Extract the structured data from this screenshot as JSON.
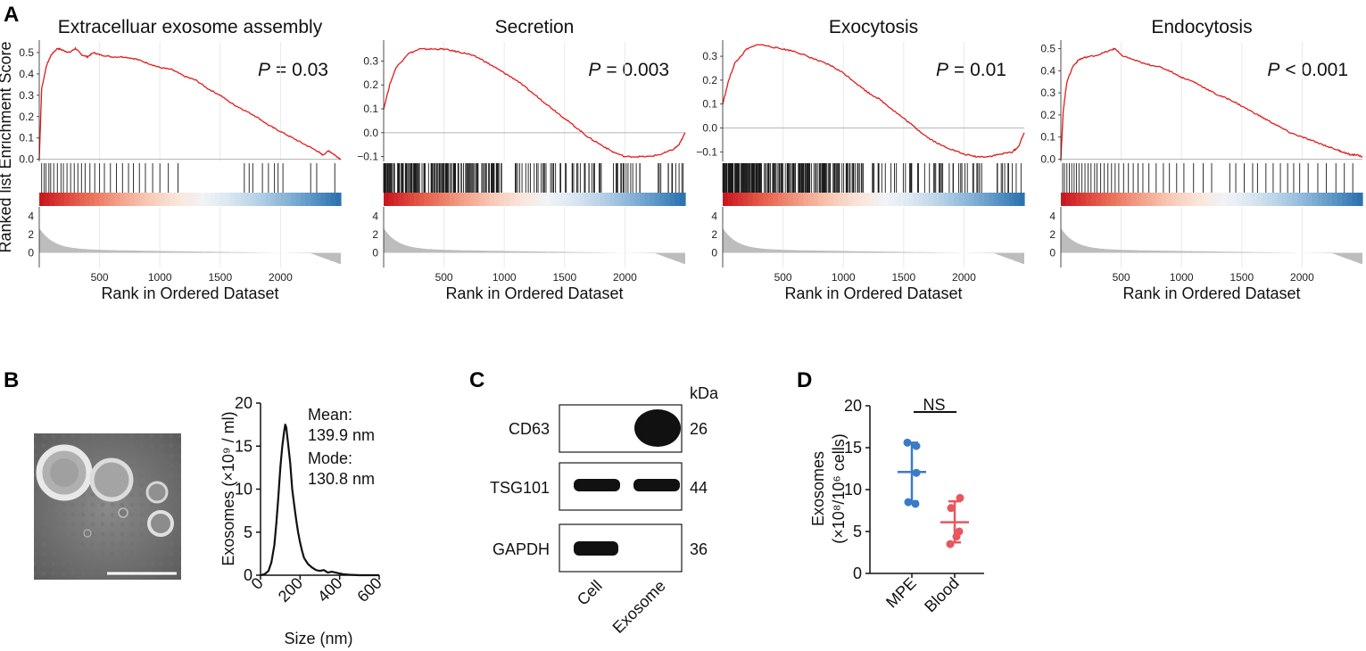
{
  "panel_labels": {
    "a": "A",
    "b": "B",
    "c": "C",
    "d": "D"
  },
  "colors": {
    "es_line": "#e31a1c",
    "hit": "#1a1a1a",
    "ranked_fill": "#bdbdbd",
    "heat_pos": "#c9181f",
    "heat_neg": "#1f66a8",
    "mpe": "#3a7bc8",
    "blood": "#e8575e",
    "black": "#111111"
  },
  "chart_data": [
    {
      "type": "line",
      "id": "gsea-1",
      "title": "Extracelluar exosome assembly",
      "p_label": "P",
      "p_text": "= 0.03",
      "xlabel": "Rank in Ordered Dataset",
      "ylabel": "Ranked list Enrichment Score",
      "xlim": [
        0,
        2500
      ],
      "ylim": [
        -0.01,
        0.55
      ],
      "yticks": [
        "0.0",
        "0.1",
        "0.2",
        "0.3",
        "0.4",
        "0.5"
      ],
      "ytick_values": [
        0,
        0.1,
        0.2,
        0.3,
        0.4,
        0.5
      ],
      "xticks": [
        "500",
        "1000",
        "1500",
        "2000"
      ],
      "xtick_values": [
        500,
        1000,
        1500,
        2000
      ],
      "ranked_yticks": [
        "0",
        "2",
        "4"
      ],
      "ranked_ytick_values": [
        0,
        2,
        4
      ],
      "es_curve": {
        "x": [
          0,
          20,
          60,
          100,
          150,
          200,
          250,
          300,
          350,
          400,
          450,
          500,
          600,
          700,
          800,
          900,
          1000,
          1100,
          1200,
          1300,
          1400,
          1500,
          1600,
          1700,
          1800,
          1900,
          2000,
          2100,
          2200,
          2300,
          2350,
          2400,
          2450,
          2500
        ],
        "y": [
          0.0,
          0.33,
          0.44,
          0.49,
          0.52,
          0.51,
          0.5,
          0.52,
          0.49,
          0.48,
          0.5,
          0.49,
          0.48,
          0.48,
          0.47,
          0.45,
          0.43,
          0.42,
          0.39,
          0.37,
          0.33,
          0.3,
          0.26,
          0.23,
          0.2,
          0.16,
          0.13,
          0.1,
          0.07,
          0.04,
          0.02,
          0.04,
          0.02,
          0.0
        ]
      },
      "hit_positions": [
        20,
        40,
        55,
        80,
        95,
        120,
        150,
        180,
        200,
        230,
        260,
        290,
        320,
        350,
        380,
        420,
        460,
        500,
        540,
        590,
        640,
        690,
        740,
        780,
        830,
        880,
        940,
        1000,
        1070,
        1150,
        1700,
        1740,
        1770,
        1850,
        1900,
        1950,
        1980,
        2020,
        2250,
        2300,
        2450
      ]
    },
    {
      "type": "line",
      "id": "gsea-2",
      "title": "Secretion",
      "p_label": "P",
      "p_text": "= 0.003",
      "xlabel": "Rank in Ordered Dataset",
      "ylabel": "",
      "xlim": [
        0,
        2500
      ],
      "ylim": [
        -0.12,
        0.38
      ],
      "yticks": [
        "−0.1",
        "0.0",
        "0.1",
        "0.2",
        "0.3"
      ],
      "ytick_values": [
        -0.1,
        0,
        0.1,
        0.2,
        0.3
      ],
      "xticks": [
        "500",
        "1000",
        "1500",
        "2000"
      ],
      "xtick_values": [
        500,
        1000,
        1500,
        2000
      ],
      "ranked_yticks": [
        "0",
        "2",
        "4"
      ],
      "ranked_ytick_values": [
        0,
        2,
        4
      ],
      "es_curve": {
        "x": [
          0,
          50,
          100,
          200,
          300,
          400,
          500,
          600,
          700,
          800,
          900,
          1000,
          1100,
          1200,
          1300,
          1400,
          1500,
          1600,
          1700,
          1800,
          1900,
          2000,
          2100,
          2200,
          2300,
          2400,
          2450,
          2500
        ],
        "y": [
          0.1,
          0.2,
          0.27,
          0.33,
          0.35,
          0.35,
          0.35,
          0.34,
          0.33,
          0.31,
          0.28,
          0.25,
          0.22,
          0.18,
          0.14,
          0.1,
          0.06,
          0.02,
          -0.02,
          -0.05,
          -0.08,
          -0.1,
          -0.1,
          -0.1,
          -0.09,
          -0.07,
          -0.05,
          0.0
        ]
      }
    },
    {
      "type": "line",
      "id": "gsea-3",
      "title": "Exocytosis",
      "p_label": "P",
      "p_text": "= 0.01",
      "xlabel": "Rank in Ordered Dataset",
      "ylabel": "",
      "xlim": [
        0,
        2500
      ],
      "ylim": [
        -0.14,
        0.36
      ],
      "yticks": [
        "−0.1",
        "0.0",
        "0.1",
        "0.2",
        "0.3"
      ],
      "ytick_values": [
        -0.1,
        0,
        0.1,
        0.2,
        0.3
      ],
      "xticks": [
        "500",
        "1000",
        "1500",
        "2000"
      ],
      "xtick_values": [
        500,
        1000,
        1500,
        2000
      ],
      "ranked_yticks": [
        "0",
        "2",
        "4"
      ],
      "ranked_ytick_values": [
        0,
        2,
        4
      ],
      "es_curve": {
        "x": [
          0,
          50,
          100,
          200,
          300,
          400,
          500,
          600,
          700,
          800,
          900,
          1000,
          1100,
          1200,
          1300,
          1400,
          1500,
          1600,
          1700,
          1800,
          1900,
          2000,
          2100,
          2200,
          2300,
          2400,
          2450,
          2500
        ],
        "y": [
          0.1,
          0.2,
          0.27,
          0.33,
          0.35,
          0.34,
          0.33,
          0.32,
          0.3,
          0.28,
          0.26,
          0.23,
          0.19,
          0.15,
          0.12,
          0.08,
          0.04,
          0.0,
          -0.04,
          -0.07,
          -0.09,
          -0.11,
          -0.12,
          -0.12,
          -0.11,
          -0.1,
          -0.08,
          -0.02
        ]
      }
    },
    {
      "type": "line",
      "id": "gsea-4",
      "title": "Endocytosis",
      "p_label": "P",
      "p_text": "< 0.001",
      "xlabel": "Rank in Ordered Dataset",
      "ylabel": "",
      "xlim": [
        0,
        2500
      ],
      "ylim": [
        -0.01,
        0.53
      ],
      "yticks": [
        "0.0",
        "0.1",
        "0.2",
        "0.3",
        "0.4",
        "0.5"
      ],
      "ytick_values": [
        0,
        0.1,
        0.2,
        0.3,
        0.4,
        0.5
      ],
      "xticks": [
        "500",
        "1000",
        "1500",
        "2000"
      ],
      "xtick_values": [
        500,
        1000,
        1500,
        2000
      ],
      "ranked_yticks": [
        "0",
        "2",
        "4"
      ],
      "ranked_ytick_values": [
        0,
        2,
        4
      ],
      "es_curve": {
        "x": [
          0,
          20,
          50,
          100,
          150,
          200,
          300,
          400,
          450,
          500,
          600,
          700,
          800,
          900,
          1000,
          1100,
          1200,
          1300,
          1400,
          1500,
          1600,
          1700,
          1800,
          1900,
          2000,
          2100,
          2200,
          2300,
          2350,
          2400,
          2450,
          2500
        ],
        "y": [
          0.0,
          0.22,
          0.35,
          0.42,
          0.45,
          0.46,
          0.47,
          0.49,
          0.5,
          0.47,
          0.45,
          0.43,
          0.42,
          0.4,
          0.37,
          0.35,
          0.32,
          0.29,
          0.27,
          0.24,
          0.21,
          0.18,
          0.15,
          0.12,
          0.1,
          0.08,
          0.06,
          0.04,
          0.03,
          0.02,
          0.02,
          0.01
        ]
      },
      "hit_positions": [
        15,
        30,
        50,
        70,
        90,
        110,
        130,
        150,
        175,
        200,
        225,
        250,
        280,
        300,
        330,
        360,
        390,
        420,
        450,
        480,
        520,
        560,
        600,
        640,
        680,
        730,
        790,
        850,
        900,
        960,
        1020,
        1100,
        1180,
        1250,
        1400,
        1450,
        1520,
        1590,
        1630,
        1700,
        1760,
        1820,
        1880,
        1930,
        1980,
        2050,
        2130,
        2200,
        2280,
        2350,
        2420
      ]
    },
    {
      "type": "line",
      "id": "nta-size",
      "xlabel": "Size (nm)",
      "ylabel": "Exosomes (×10⁹ / ml)",
      "xlim": [
        0,
        600
      ],
      "ylim": [
        0,
        20
      ],
      "xticks": [
        "0",
        "200",
        "400",
        "600"
      ],
      "xtick_values": [
        0,
        200,
        400,
        600
      ],
      "yticks": [
        "0",
        "5",
        "10",
        "15",
        "20"
      ],
      "ytick_values": [
        0,
        5,
        10,
        15,
        20
      ],
      "annotation": [
        "Mean:",
        "139.9 nm",
        "Mode:",
        "130.8 nm"
      ],
      "x": [
        0,
        20,
        40,
        55,
        70,
        80,
        90,
        100,
        110,
        120,
        125,
        130,
        135,
        140,
        150,
        160,
        170,
        180,
        190,
        200,
        210,
        220,
        240,
        260,
        280,
        300,
        320,
        340,
        360,
        380,
        400,
        420,
        450,
        500,
        600
      ],
      "y": [
        0,
        0.1,
        0.5,
        1.5,
        3.5,
        6.0,
        9.0,
        12.5,
        15.0,
        16.8,
        17.5,
        17.2,
        16.2,
        15.2,
        13.0,
        10.0,
        8.2,
        6.5,
        5.0,
        3.8,
        2.8,
        2.0,
        1.3,
        0.9,
        0.6,
        0.5,
        0.6,
        0.3,
        0.4,
        0.3,
        0.2,
        0.1,
        0.05,
        0.0,
        0.0
      ]
    },
    {
      "type": "scatter",
      "id": "exosome-yield",
      "ylabel_line1": "Exosomes",
      "ylabel_line2": "(×10⁸/10⁶ cells)",
      "categories": [
        "MPE",
        "Blood"
      ],
      "ylim": [
        0,
        20
      ],
      "yticks": [
        "0",
        "5",
        "10",
        "15",
        "20"
      ],
      "ytick_values": [
        0,
        5,
        10,
        15,
        20
      ],
      "significance": "NS",
      "series": [
        {
          "name": "MPE",
          "points": [
            15.6,
            15.2,
            12.0,
            8.5,
            8.3
          ],
          "mean": 12.1,
          "err_low": 8.6,
          "err_high": 15.6
        },
        {
          "name": "Blood",
          "points": [
            9.0,
            7.8,
            5.0,
            4.4,
            3.5
          ],
          "mean": 6.1,
          "err_low": 3.7,
          "err_high": 8.6
        }
      ]
    }
  ],
  "tem": {
    "scale_bar_label": ""
  },
  "western": {
    "unit_label": "kDa",
    "rows": [
      {
        "label": "CD63",
        "kda": "26"
      },
      {
        "label": "TSG101",
        "kda": "44"
      },
      {
        "label": "GAPDH",
        "kda": "36"
      }
    ],
    "lanes": [
      "Cell",
      "Exosome"
    ]
  }
}
